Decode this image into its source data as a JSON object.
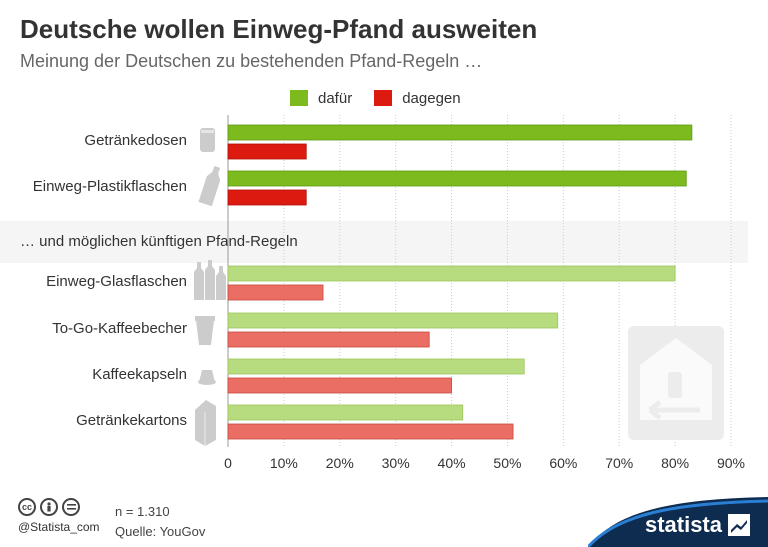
{
  "header": {
    "title": "Deutsche wollen Einweg-Pfand ausweiten",
    "subtitle": "Meinung der Deutschen zu bestehenden Pfand-Regeln …"
  },
  "legend": {
    "items": [
      {
        "label": "dafür",
        "color": "#7cba1e"
      },
      {
        "label": "dagegen",
        "color": "#dd1a10"
      }
    ]
  },
  "section2_title": "… und möglichen künftigen Pfand-Regeln",
  "colors": {
    "dafuer_strong": "#7cba1e",
    "dagegen_strong": "#dd1a10",
    "dafuer_light": "#b7dc7f",
    "dagegen_light": "#ea6e63",
    "grid": "#cccccc",
    "icon": "#cccccc"
  },
  "chart_data": {
    "type": "bar",
    "orientation": "horizontal",
    "categories": [
      "Getränkedosen",
      "Einweg-Plastikflaschen",
      "Einweg-Glasflaschen",
      "To-Go-Kaffeebecher",
      "Kaffeekapseln",
      "Getränkekartons"
    ],
    "groups": [
      "bestehende Pfand-Regeln",
      "bestehende Pfand-Regeln",
      "mögliche künftige Pfand-Regeln",
      "mögliche künftige Pfand-Regeln",
      "mögliche künftige Pfand-Regeln",
      "mögliche künftige Pfand-Regeln"
    ],
    "series": [
      {
        "name": "dafür",
        "values": [
          83,
          82,
          80,
          59,
          53,
          42
        ]
      },
      {
        "name": "dagegen",
        "values": [
          14,
          14,
          17,
          36,
          40,
          51
        ]
      }
    ],
    "xlim": [
      0,
      90
    ],
    "xticks": [
      "0",
      "10%",
      "20%",
      "30%",
      "40%",
      "50%",
      "60%",
      "70%",
      "80%",
      "90%"
    ],
    "grid": true,
    "legend_position": "top"
  },
  "category_icons": [
    "can-icon",
    "plastic-bottle-icon",
    "glass-bottles-icon",
    "coffee-cup-icon",
    "coffee-capsule-icon",
    "drink-carton-icon"
  ],
  "footer": {
    "license_icons": [
      "cc",
      "by",
      "nd"
    ],
    "cc_label": "cc",
    "handle": "@Statista_com",
    "n": "n = 1.310",
    "source": "Quelle: YouGov",
    "brand": "statista"
  }
}
